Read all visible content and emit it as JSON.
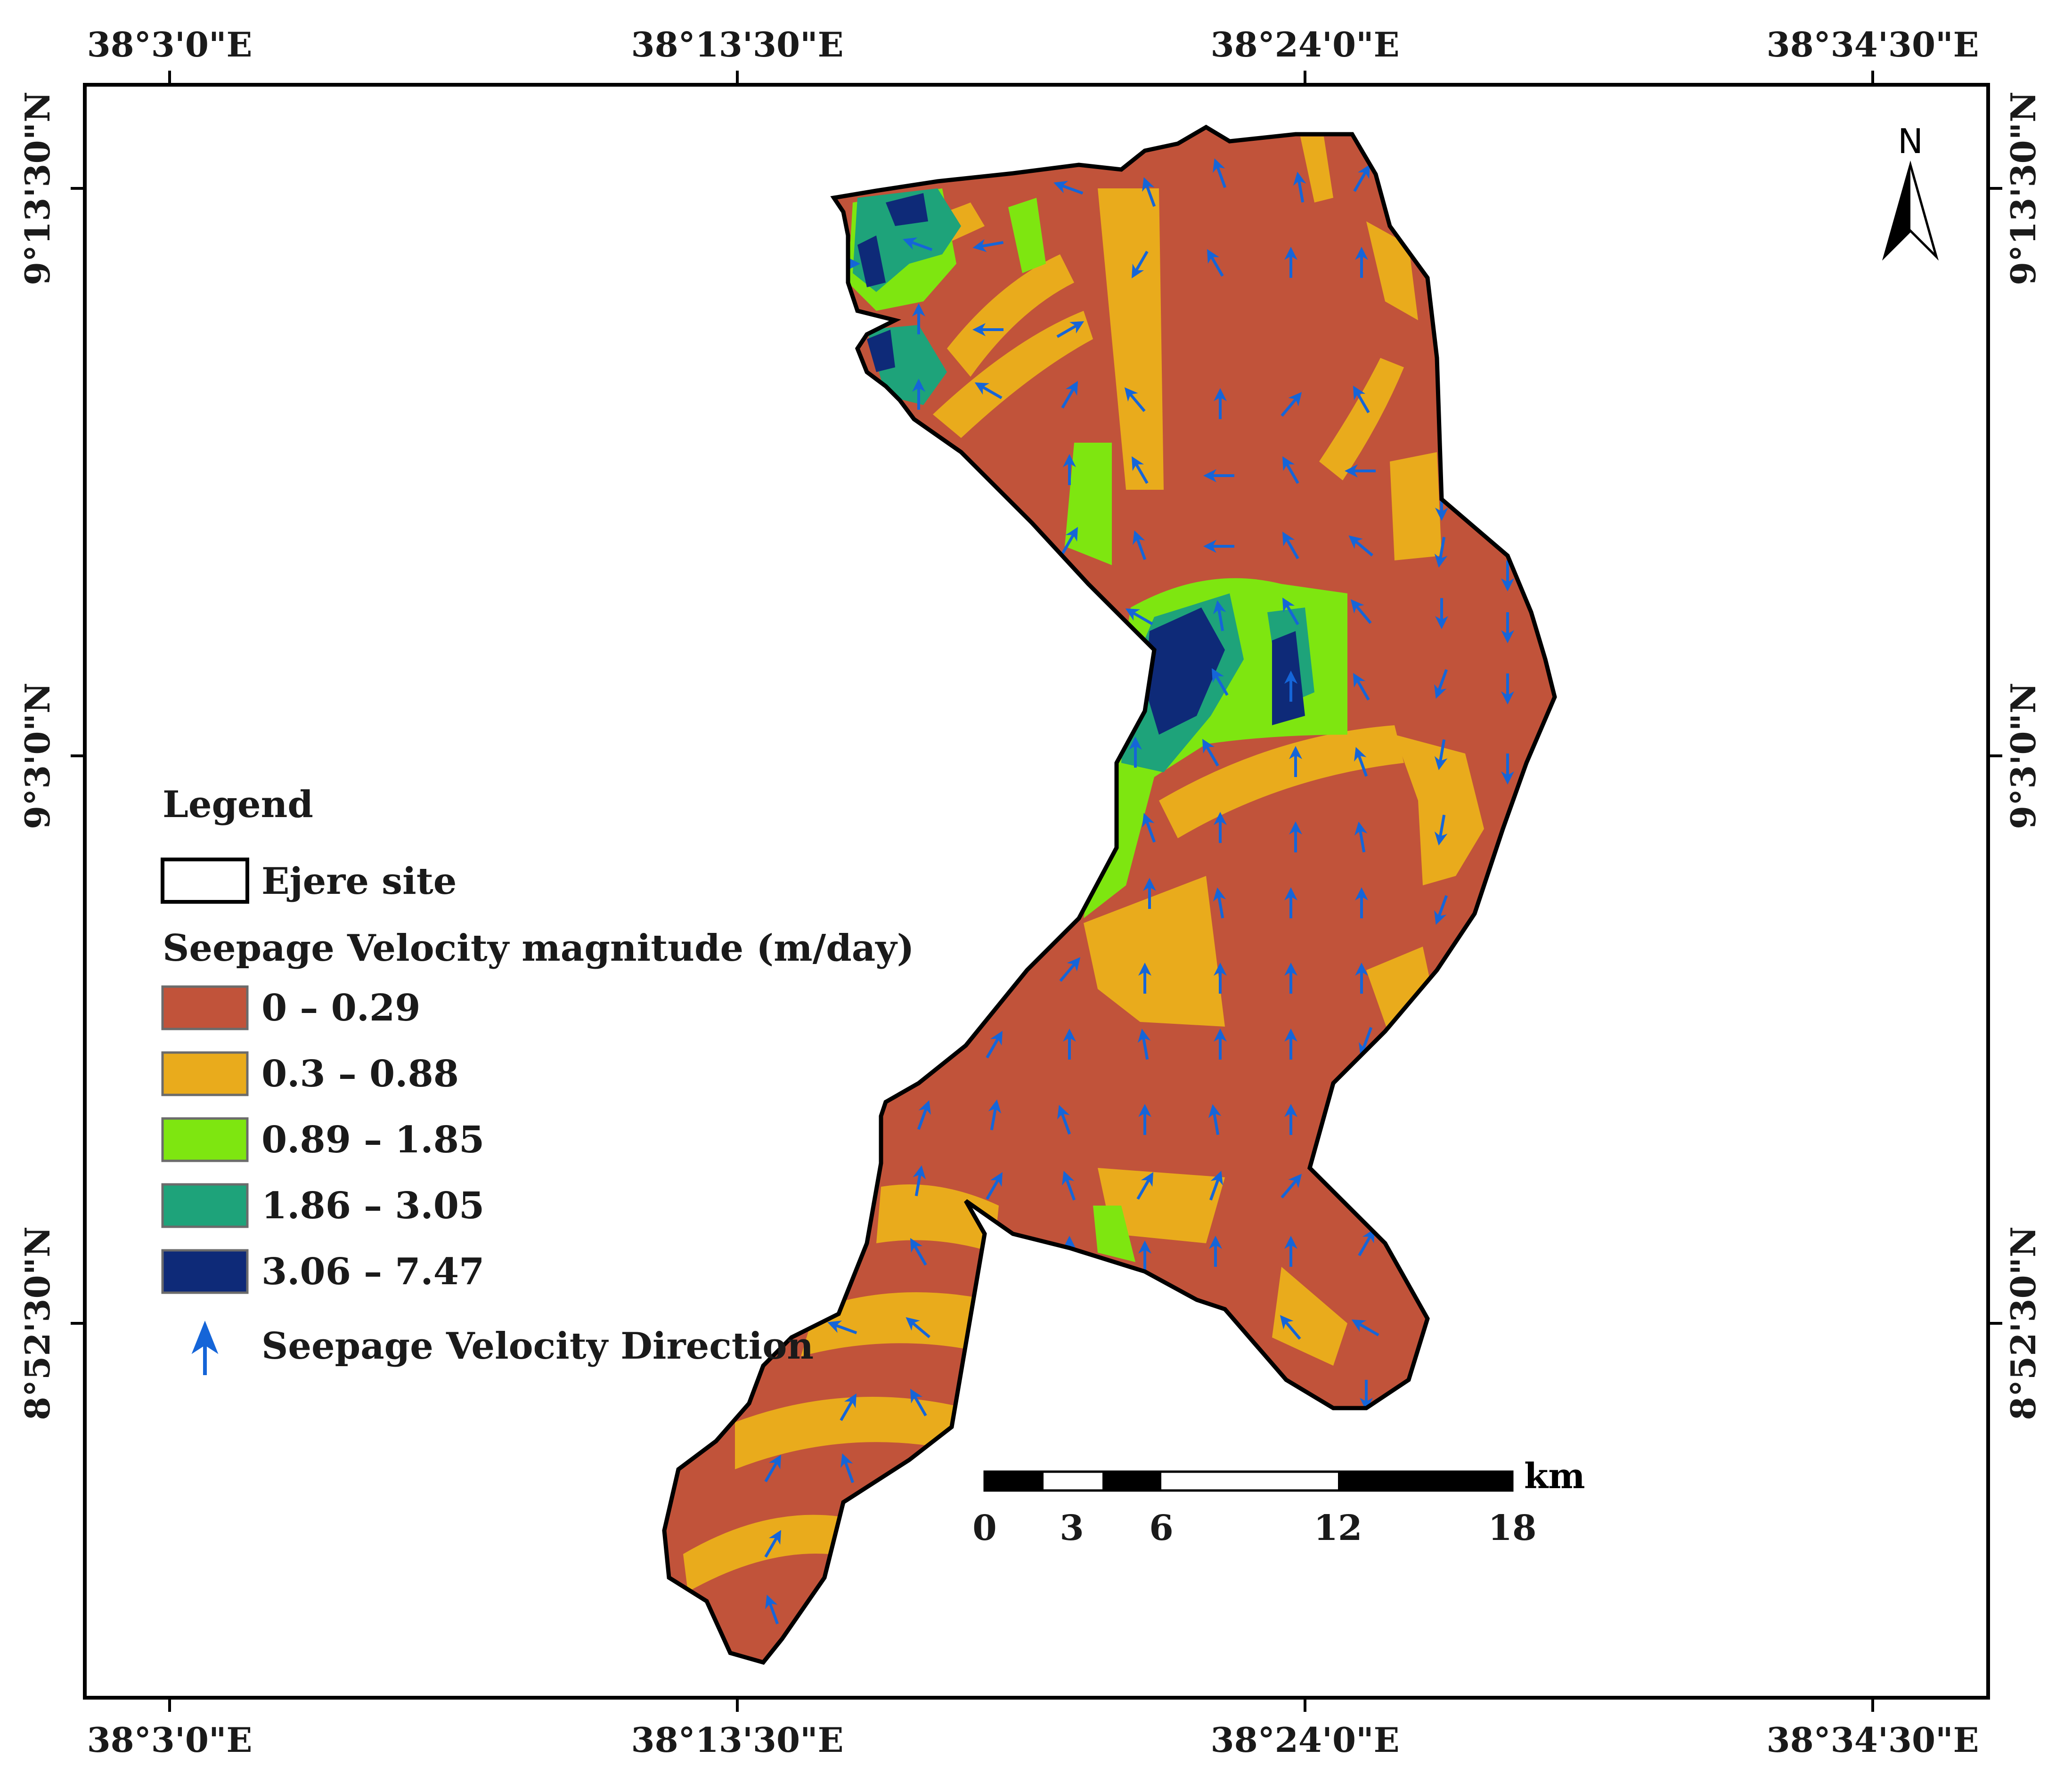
{
  "graticule": {
    "top_labels": [
      "38°3'0\"E",
      "38°13'30\"E",
      "38°24'0\"E",
      "38°34'30\"E"
    ],
    "bottom_labels": [
      "38°3'0\"E",
      "38°13'30\"E",
      "38°24'0\"E",
      "38°34'30\"E"
    ],
    "left_labels": [
      "9°13'30\"N",
      "9°3'0\"N",
      "8°52'30\"N"
    ],
    "right_labels": [
      "9°13'30\"N",
      "9°3'0\"N",
      "8°52'30\"N"
    ]
  },
  "north_arrow": {
    "label": "N"
  },
  "legend": {
    "title": "Legend",
    "site_label": "Ejere site",
    "classes_title": "Seepage Velocity magnitude (m/day)",
    "classes": [
      {
        "label": "0 – 0.29",
        "color": "#c1533a"
      },
      {
        "label": "0.3 – 0.88",
        "color": "#e9ab1c"
      },
      {
        "label": "0.89 – 1.85",
        "color": "#7ee610"
      },
      {
        "label": "1.86 – 3.05",
        "color": "#1ea37a"
      },
      {
        "label": "3.06 – 7.47",
        "color": "#0e2a78"
      }
    ],
    "direction_label": "Seepage Velocity Direction",
    "arrow_color": "#1565d8"
  },
  "scale_bar": {
    "unit": "km",
    "ticks": [
      "0",
      "3",
      "6",
      "12",
      "18"
    ]
  }
}
